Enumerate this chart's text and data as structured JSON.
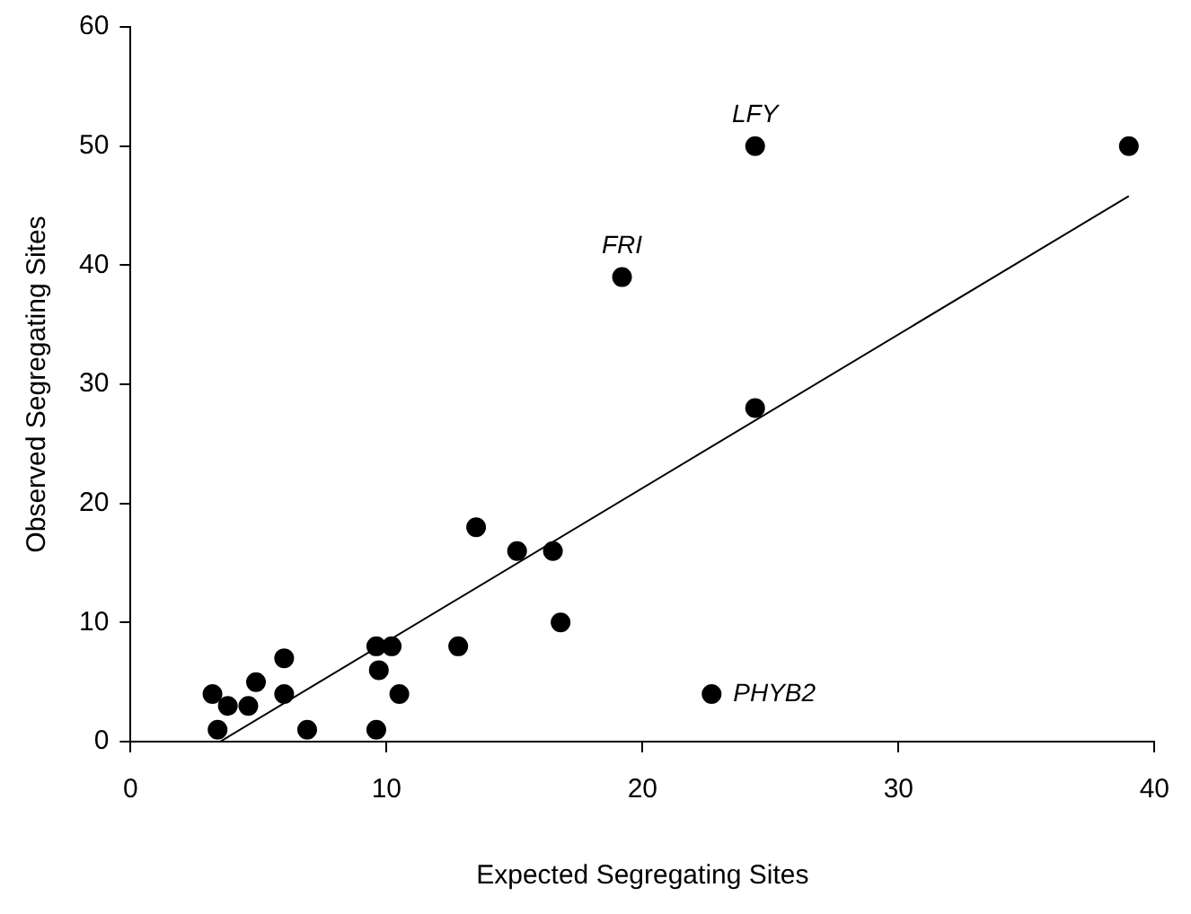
{
  "chart_data": {
    "type": "scatter",
    "xlabel": "Expected Segregating Sites",
    "ylabel": "Observed Segregating Sites",
    "series": [
      {
        "color": "#000000",
        "x": [
          3.2,
          3.4,
          3.8,
          4.6,
          4.9,
          6.0,
          6.0,
          6.9,
          9.6,
          9.7,
          9.6,
          10.2,
          10.5,
          12.8,
          13.5,
          15.1,
          16.5,
          16.8,
          19.2,
          22.7,
          24.4,
          24.4,
          39.0
        ],
        "values": [
          4,
          1,
          3,
          3,
          5,
          7,
          4,
          1,
          8,
          6,
          1,
          8,
          4,
          8,
          18,
          16,
          16,
          10,
          39,
          4,
          50,
          28,
          50
        ]
      },
      {
        "type": "line",
        "color": "#000000",
        "x": [
          3.5,
          39.0
        ],
        "values": [
          0,
          45.8
        ],
        "marker": "none"
      }
    ],
    "annotations": [
      {
        "text": "LFY",
        "x": 24.4,
        "y": 50
      },
      {
        "text": "FRI",
        "x": 19.2,
        "y": 39
      },
      {
        "text": "PHYB2",
        "x": 22.7,
        "y": 4
      }
    ],
    "xlim": [
      0,
      40
    ],
    "xticks": [
      0,
      10,
      20,
      30,
      40
    ],
    "ylim": [
      0,
      60
    ],
    "yticks": [
      0,
      10,
      20,
      30,
      40,
      50,
      60
    ],
    "grid": false,
    "legend": false,
    "marker": "circle"
  }
}
